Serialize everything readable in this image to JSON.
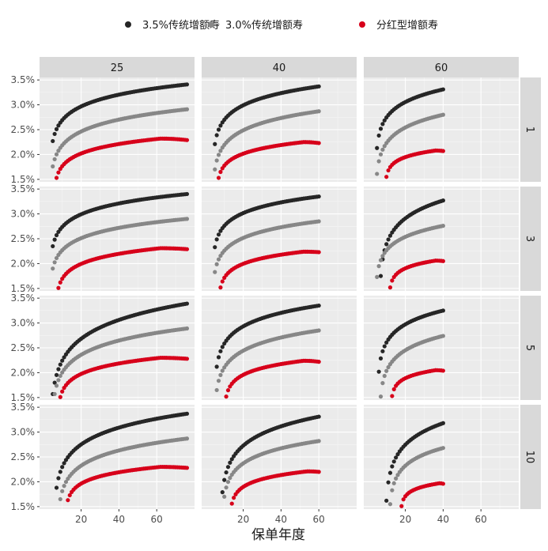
{
  "chart_data": {
    "type": "scatter",
    "xlabel": "保单年度",
    "ylabel": "",
    "x_ticks": [
      20,
      40,
      60
    ],
    "y_ticks": [
      "1.5%",
      "2.0%",
      "2.5%",
      "3.0%",
      "3.5%"
    ],
    "y_tick_values": [
      1.5,
      2.0,
      2.5,
      3.0,
      3.5
    ],
    "xlim": [
      -2,
      80
    ],
    "ylim": [
      1.45,
      3.55
    ],
    "grid": true,
    "legend_position": "top",
    "col_facet_labels": [
      "25",
      "40",
      "60"
    ],
    "row_facet_labels": [
      "1",
      "3",
      "5",
      "10"
    ],
    "series": [
      {
        "name": "3.5%传统增额寿",
        "color": "#262626"
      },
      {
        "name": "3.0%传统增额寿",
        "color": "#878787"
      },
      {
        "name": "分红型增额寿",
        "color": "#d7001a"
      }
    ],
    "panels": [
      {
        "col": "25",
        "row": "1",
        "x_end": 76,
        "curves": [
          {
            "series": "3.5%传统增额寿",
            "x_start": 5,
            "y_start": 2.27,
            "y_end": 3.41
          },
          {
            "series": "3.0%传统增额寿",
            "x_start": 5,
            "y_start": 1.76,
            "y_end": 2.91
          },
          {
            "series": "分红型增额寿",
            "x_start": 7,
            "y_start": 1.53,
            "y_end": 2.29,
            "y_peak": 2.32,
            "x_peak": 62
          }
        ]
      },
      {
        "col": "40",
        "row": "1",
        "x_end": 60,
        "curves": [
          {
            "series": "3.5%传统增额寿",
            "x_start": 5,
            "y_start": 2.21,
            "y_end": 3.37
          },
          {
            "series": "3.0%传统增额寿",
            "x_start": 5,
            "y_start": 1.7,
            "y_end": 2.87
          },
          {
            "series": "分红型增额寿",
            "x_start": 7,
            "y_start": 1.53,
            "y_end": 2.23,
            "y_peak": 2.25,
            "x_peak": 52
          }
        ]
      },
      {
        "col": "60",
        "row": "1",
        "x_end": 40,
        "curves": [
          {
            "series": "3.5%传统增额寿",
            "x_start": 5,
            "y_start": 2.13,
            "y_end": 3.31
          },
          {
            "series": "3.0%传统增额寿",
            "x_start": 5,
            "y_start": 1.61,
            "y_end": 2.8
          },
          {
            "series": "分红型增额寿",
            "x_start": 10,
            "y_start": 1.55,
            "y_end": 2.07,
            "y_peak": 2.08,
            "x_peak": 36
          }
        ]
      },
      {
        "col": "25",
        "row": "3",
        "x_end": 76,
        "curves": [
          {
            "series": "3.5%传统增额寿",
            "x_start": 5,
            "y_start": 2.35,
            "y_end": 3.4
          },
          {
            "series": "3.0%传统增额寿",
            "x_start": 5,
            "y_start": 1.9,
            "y_end": 2.9
          },
          {
            "series": "分红型增额寿",
            "x_start": 8,
            "y_start": 1.51,
            "y_end": 2.29,
            "y_peak": 2.31,
            "x_peak": 62
          }
        ]
      },
      {
        "col": "40",
        "row": "3",
        "x_end": 60,
        "curves": [
          {
            "series": "3.5%传统增额寿",
            "x_start": 5,
            "y_start": 2.33,
            "y_end": 3.35
          },
          {
            "series": "3.0%传统增额寿",
            "x_start": 5,
            "y_start": 1.83,
            "y_end": 2.85
          },
          {
            "series": "分红型增额寿",
            "x_start": 8,
            "y_start": 1.52,
            "y_end": 2.23,
            "y_peak": 2.24,
            "x_peak": 52
          }
        ]
      },
      {
        "col": "60",
        "row": "3",
        "x_end": 40,
        "curves": [
          {
            "series": "3.5%传统增额寿",
            "x_start": 7,
            "y_start": 1.75,
            "y_end": 3.27
          },
          {
            "series": "3.0%传统增额寿",
            "x_start": 5,
            "y_start": 1.73,
            "y_end": 2.76
          },
          {
            "series": "分红型增额寿",
            "x_start": 12,
            "y_start": 1.52,
            "y_end": 2.05,
            "y_peak": 2.06,
            "x_peak": 36
          }
        ]
      },
      {
        "col": "25",
        "row": "5",
        "x_end": 76,
        "curves": [
          {
            "series": "3.5%传统增额寿",
            "x_start": 5,
            "y_start": 1.57,
            "y_end": 3.39
          },
          {
            "series": "3.0%传统增额寿",
            "x_start": 6,
            "y_start": 1.57,
            "y_end": 2.89
          },
          {
            "series": "分红型增额寿",
            "x_start": 9,
            "y_start": 1.51,
            "y_end": 2.28,
            "y_peak": 2.3,
            "x_peak": 62
          }
        ]
      },
      {
        "col": "40",
        "row": "5",
        "x_end": 60,
        "curves": [
          {
            "series": "3.5%传统增额寿",
            "x_start": 6,
            "y_start": 2.12,
            "y_end": 3.35
          },
          {
            "series": "3.0%传统增额寿",
            "x_start": 6,
            "y_start": 1.65,
            "y_end": 2.85
          },
          {
            "series": "分红型增额寿",
            "x_start": 11,
            "y_start": 1.52,
            "y_end": 2.22,
            "y_peak": 2.24,
            "x_peak": 52
          }
        ]
      },
      {
        "col": "60",
        "row": "5",
        "x_end": 40,
        "curves": [
          {
            "series": "3.5%传统增额寿",
            "x_start": 6,
            "y_start": 2.02,
            "y_end": 3.25
          },
          {
            "series": "3.0%传统增额寿",
            "x_start": 7,
            "y_start": 1.52,
            "y_end": 2.74
          },
          {
            "series": "分红型增额寿",
            "x_start": 13,
            "y_start": 1.53,
            "y_end": 2.04,
            "y_peak": 2.05,
            "x_peak": 36
          }
        ]
      },
      {
        "col": "25",
        "row": "10",
        "x_end": 76,
        "curves": [
          {
            "series": "3.5%传统增额寿",
            "x_start": 7,
            "y_start": 1.88,
            "y_end": 3.37
          },
          {
            "series": "3.0%传统增额寿",
            "x_start": 9,
            "y_start": 1.65,
            "y_end": 2.87
          },
          {
            "series": "分红型增额寿",
            "x_start": 13,
            "y_start": 1.63,
            "y_end": 2.28,
            "y_peak": 2.3,
            "x_peak": 62
          }
        ]
      },
      {
        "col": "40",
        "row": "10",
        "x_end": 60,
        "curves": [
          {
            "series": "3.5%传统增额寿",
            "x_start": 9,
            "y_start": 1.79,
            "y_end": 3.31
          },
          {
            "series": "3.0%传统增额寿",
            "x_start": 10,
            "y_start": 1.7,
            "y_end": 2.82
          },
          {
            "series": "分红型增额寿",
            "x_start": 14,
            "y_start": 1.56,
            "y_end": 2.2,
            "y_peak": 2.21,
            "x_peak": 54
          }
        ]
      },
      {
        "col": "60",
        "row": "10",
        "x_end": 40,
        "curves": [
          {
            "series": "3.5%传统增额寿",
            "x_start": 10,
            "y_start": 1.62,
            "y_end": 3.18
          },
          {
            "series": "3.0%传统增额寿",
            "x_start": 12,
            "y_start": 1.55,
            "y_end": 2.68
          },
          {
            "series": "分红型增额寿",
            "x_start": 18,
            "y_start": 1.51,
            "y_end": 1.96,
            "y_peak": 1.97,
            "x_peak": 38
          }
        ]
      }
    ]
  }
}
